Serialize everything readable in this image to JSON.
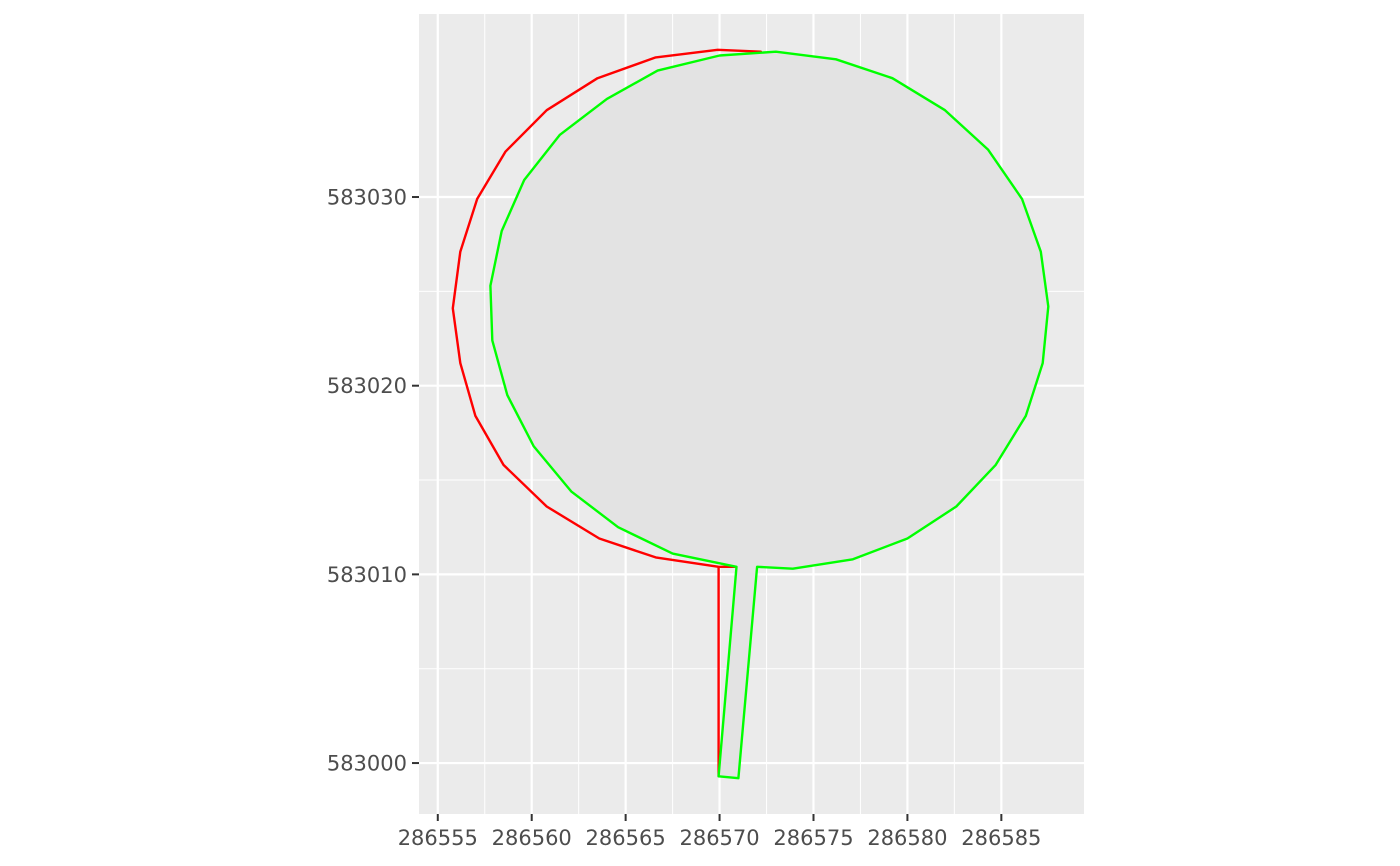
{
  "chart_data": {
    "type": "polygon",
    "title": "",
    "xlabel": "",
    "ylabel": "",
    "xlim": [
      286554.0,
      286589.4
    ],
    "ylim": [
      582997.3,
      583039.7
    ],
    "x_ticks": [
      286555,
      286560,
      286565,
      286570,
      286575,
      286580,
      286585
    ],
    "x_tick_labels": [
      "286555",
      "286560",
      "286565",
      "286570",
      "286575",
      "286580",
      "286585"
    ],
    "y_ticks": [
      583000,
      583010,
      583020,
      583030
    ],
    "y_tick_labels": [
      "583000",
      "583010",
      "583020",
      "583030"
    ],
    "grid": true,
    "legend": "none",
    "background_color": "#ebebeb",
    "grid_color": "#ffffff",
    "series": [
      {
        "color": "#ff0000",
        "fill": "none",
        "points": [
          [
            286569.95,
            582999.3
          ],
          [
            286569.95,
            583010.4
          ],
          [
            286566.6,
            583010.9
          ],
          [
            286563.6,
            583011.9
          ],
          [
            286560.8,
            583013.6
          ],
          [
            286558.5,
            583015.8
          ],
          [
            286557.0,
            583018.4
          ],
          [
            286556.2,
            583021.2
          ],
          [
            286555.8,
            583024.1
          ],
          [
            286556.2,
            583027.1
          ],
          [
            286557.1,
            583029.9
          ],
          [
            286558.6,
            583032.4
          ],
          [
            286560.8,
            583034.6
          ],
          [
            286563.5,
            583036.3
          ],
          [
            286566.6,
            583037.4
          ],
          [
            286569.9,
            583037.8
          ],
          [
            286572.2,
            583037.7
          ],
          [
            286571.3,
            583010.4
          ],
          [
            286569.95,
            583010.4
          ]
        ]
      },
      {
        "color": "#00ff00",
        "fill": "#e3e3e3",
        "points": [
          [
            286569.95,
            582999.3
          ],
          [
            286571.0,
            582999.2
          ],
          [
            286572.0,
            583010.4
          ],
          [
            286573.9,
            583010.3
          ],
          [
            286577.1,
            583010.8
          ],
          [
            286580.0,
            583011.9
          ],
          [
            286582.6,
            583013.6
          ],
          [
            286584.7,
            583015.8
          ],
          [
            286586.3,
            583018.4
          ],
          [
            286587.2,
            583021.2
          ],
          [
            286587.5,
            583024.2
          ],
          [
            286587.1,
            583027.1
          ],
          [
            286586.1,
            583029.9
          ],
          [
            286584.3,
            583032.5
          ],
          [
            286582.0,
            583034.6
          ],
          [
            286579.2,
            583036.3
          ],
          [
            286576.2,
            583037.3
          ],
          [
            286573.0,
            583037.7
          ],
          [
            286570.0,
            583037.5
          ],
          [
            286566.7,
            583036.7
          ],
          [
            286564.0,
            583035.2
          ],
          [
            286561.5,
            583033.3
          ],
          [
            286559.6,
            583030.9
          ],
          [
            286558.4,
            583028.2
          ],
          [
            286557.8,
            583025.3
          ],
          [
            286557.9,
            583022.4
          ],
          [
            286558.7,
            583019.5
          ],
          [
            286560.1,
            583016.8
          ],
          [
            286562.1,
            583014.4
          ],
          [
            286564.6,
            583012.5
          ],
          [
            286567.5,
            583011.1
          ],
          [
            286570.9,
            583010.4
          ],
          [
            286569.95,
            582999.3
          ]
        ]
      }
    ]
  }
}
